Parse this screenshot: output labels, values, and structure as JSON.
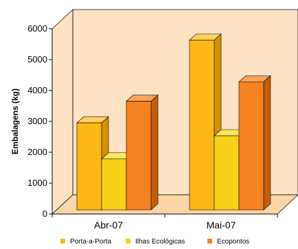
{
  "chart_data": {
    "type": "bar",
    "three_d": true,
    "title": "",
    "xlabel": "",
    "ylabel": "Embalagens (kg)",
    "ylim": [
      0,
      6000
    ],
    "yticks": [
      "0",
      "1000",
      "2000",
      "3000",
      "4000",
      "5000",
      "6000"
    ],
    "categories": [
      "Abr-07",
      "Mai-07"
    ],
    "series": [
      {
        "name": "Porta-a-Porta",
        "values": [
          2820,
          5500
        ],
        "color": "#FDB714",
        "side_color": "#D39400",
        "top_color": "#FFD060"
      },
      {
        "name": "Ilhas Ecológicas",
        "values": [
          1650,
          2400
        ],
        "color": "#F7D117",
        "side_color": "#C9A600",
        "top_color": "#FFE65A"
      },
      {
        "name": "Ecopontos",
        "values": [
          3520,
          4150
        ],
        "color": "#F58220",
        "side_color": "#C55E0C",
        "top_color": "#FBA55A"
      }
    ],
    "wall_color": "#FDE3C4",
    "floor_color": "#FBD5A8",
    "grid": false,
    "legend_position": "bottom"
  }
}
